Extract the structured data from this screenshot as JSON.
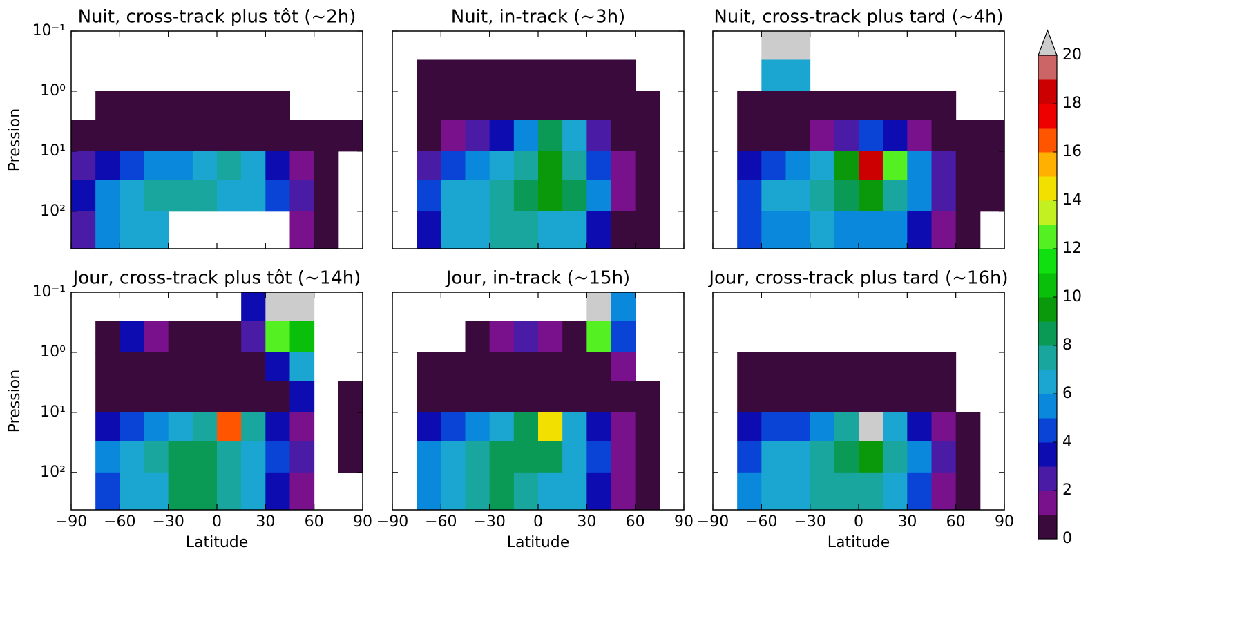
{
  "chart_data": [
    {
      "type": "contour",
      "title": "Nuit, cross-track plus tôt (~2h)",
      "ylabel": "Pression",
      "xlim": [
        -90,
        90
      ],
      "xticks": [
        -90,
        -60,
        -30,
        0,
        30,
        60,
        90
      ],
      "ylim": [
        420,
        0.1
      ],
      "yticks": [
        {
          "value": 0.1,
          "label": "10⁻¹"
        },
        {
          "value": 1,
          "label": "10⁰"
        },
        {
          "value": 10,
          "label": "10¹"
        },
        {
          "value": 100,
          "label": "10²"
        }
      ],
      "xbins": [
        -90,
        -75,
        -60,
        -45,
        -30,
        -15,
        0,
        15,
        30,
        45,
        60,
        75,
        90
      ],
      "ybins": [
        0.1,
        0.3,
        1,
        3,
        10,
        30,
        100,
        420
      ],
      "z": [
        [
          null,
          null,
          null,
          null,
          null,
          null,
          null,
          null,
          null,
          null,
          null,
          null
        ],
        [
          null,
          null,
          null,
          null,
          null,
          null,
          null,
          null,
          null,
          null,
          null,
          null
        ],
        [
          null,
          0,
          0,
          0,
          0,
          0,
          0,
          0,
          0,
          null,
          null,
          null
        ],
        [
          0,
          0,
          0,
          0,
          0,
          0,
          0,
          0,
          0,
          0,
          0,
          0
        ],
        [
          2,
          3,
          4,
          5,
          5,
          6,
          7,
          6,
          3,
          1,
          0,
          null
        ],
        [
          3,
          5,
          6,
          7,
          7,
          7,
          6,
          6,
          4,
          2,
          0,
          null
        ],
        [
          2,
          5,
          6,
          6,
          null,
          null,
          null,
          null,
          null,
          1,
          0,
          null
        ]
      ]
    },
    {
      "type": "contour",
      "title": "Nuit, in-track (~3h)",
      "xlim": [
        -90,
        90
      ],
      "xticks": [
        -90,
        -60,
        -30,
        0,
        30,
        60,
        90
      ],
      "ylim": [
        420,
        0.1
      ],
      "yticks": [
        0.1,
        1,
        10,
        100
      ],
      "xbins": [
        -90,
        -75,
        -60,
        -45,
        -30,
        -15,
        0,
        15,
        30,
        45,
        60,
        75,
        90
      ],
      "ybins": [
        0.1,
        0.3,
        1,
        3,
        10,
        30,
        100,
        420
      ],
      "z": [
        [
          null,
          null,
          null,
          null,
          null,
          null,
          null,
          null,
          null,
          null,
          null,
          null
        ],
        [
          null,
          0,
          0,
          0,
          0,
          0,
          0,
          0,
          0,
          0,
          null,
          null
        ],
        [
          null,
          0,
          0,
          0,
          0,
          0,
          0,
          0,
          0,
          0,
          0,
          null
        ],
        [
          null,
          0,
          1,
          2,
          3,
          5,
          8,
          6,
          2,
          0,
          0,
          null
        ],
        [
          null,
          2,
          4,
          5,
          6,
          7,
          9,
          7,
          4,
          1,
          0,
          null
        ],
        [
          null,
          4,
          6,
          6,
          7,
          8,
          9,
          8,
          5,
          1,
          0,
          null
        ],
        [
          null,
          3,
          6,
          6,
          7,
          7,
          6,
          6,
          3,
          0,
          0,
          null
        ]
      ]
    },
    {
      "type": "contour",
      "title": "Nuit, cross-track plus tard (~4h)",
      "xlim": [
        -90,
        90
      ],
      "xticks": [
        -90,
        -60,
        -30,
        0,
        30,
        60,
        90
      ],
      "ylim": [
        420,
        0.1
      ],
      "yticks": [
        0.1,
        1,
        10,
        100
      ],
      "xbins": [
        -90,
        -75,
        -60,
        -45,
        -30,
        -15,
        0,
        15,
        30,
        45,
        60,
        75,
        90
      ],
      "ybins": [
        0.1,
        0.3,
        1,
        3,
        10,
        30,
        100,
        420
      ],
      "z": [
        [
          null,
          null,
          20,
          20,
          null,
          null,
          null,
          null,
          null,
          null,
          null,
          null
        ],
        [
          null,
          null,
          6,
          6,
          null,
          null,
          null,
          null,
          null,
          null,
          null,
          null
        ],
        [
          null,
          0,
          0,
          0,
          0,
          0,
          0,
          0,
          0,
          0,
          null,
          null
        ],
        [
          null,
          0,
          0,
          0,
          1,
          2,
          4,
          3,
          1,
          0,
          0,
          0
        ],
        [
          null,
          3,
          4,
          5,
          6,
          9,
          18,
          12,
          5,
          2,
          0,
          0
        ],
        [
          null,
          4,
          6,
          6,
          7,
          8,
          9,
          7,
          5,
          2,
          0,
          0
        ],
        [
          null,
          4,
          5,
          5,
          6,
          5,
          5,
          5,
          3,
          1,
          0,
          null
        ]
      ]
    },
    {
      "type": "contour",
      "title": "Jour, cross-track plus tôt (~14h)",
      "xlabel": "Latitude",
      "ylabel": "Pression",
      "xlim": [
        -90,
        90
      ],
      "xticks": [
        {
          "value": -90,
          "label": "−90"
        },
        {
          "value": -60,
          "label": "−60"
        },
        {
          "value": -30,
          "label": "−30"
        },
        0,
        30,
        60,
        90
      ],
      "ylim": [
        420,
        0.1
      ],
      "yticks": [
        {
          "value": 0.1,
          "label": "10⁻¹"
        },
        {
          "value": 1,
          "label": "10⁰"
        },
        {
          "value": 10,
          "label": "10¹"
        },
        {
          "value": 100,
          "label": "10²"
        }
      ],
      "xbins": [
        -90,
        -75,
        -60,
        -45,
        -30,
        -15,
        0,
        15,
        30,
        45,
        60,
        75,
        90
      ],
      "ybins": [
        0.1,
        0.3,
        1,
        3,
        10,
        30,
        100,
        420
      ],
      "z": [
        [
          null,
          null,
          null,
          null,
          null,
          null,
          null,
          3,
          20,
          20,
          null,
          null
        ],
        [
          null,
          0,
          3,
          1,
          0,
          0,
          0,
          2,
          12,
          10,
          null,
          null
        ],
        [
          null,
          0,
          0,
          0,
          0,
          0,
          0,
          0,
          3,
          6,
          null,
          null
        ],
        [
          null,
          0,
          0,
          0,
          0,
          0,
          0,
          0,
          0,
          3,
          null,
          0
        ],
        [
          null,
          3,
          4,
          5,
          6,
          7,
          16,
          7,
          3,
          1,
          null,
          0
        ],
        [
          null,
          5,
          6,
          7,
          8,
          8,
          7,
          6,
          4,
          2,
          null,
          0
        ],
        [
          null,
          4,
          6,
          6,
          8,
          8,
          7,
          6,
          3,
          1,
          null,
          null
        ]
      ]
    },
    {
      "type": "contour",
      "title": "Jour, in-track (~15h)",
      "xlabel": "Latitude",
      "xlim": [
        -90,
        90
      ],
      "xticks": [
        {
          "value": -90,
          "label": "−90"
        },
        {
          "value": -60,
          "label": "−60"
        },
        {
          "value": -30,
          "label": "−30"
        },
        0,
        30,
        60,
        90
      ],
      "ylim": [
        420,
        0.1
      ],
      "yticks": [
        0.1,
        1,
        10,
        100
      ],
      "xbins": [
        -90,
        -75,
        -60,
        -45,
        -30,
        -15,
        0,
        15,
        30,
        45,
        60,
        75,
        90
      ],
      "ybins": [
        0.1,
        0.3,
        1,
        3,
        10,
        30,
        100,
        420
      ],
      "z": [
        [
          null,
          null,
          null,
          null,
          null,
          null,
          null,
          null,
          20,
          5,
          null,
          null
        ],
        [
          null,
          null,
          null,
          0,
          1,
          2,
          1,
          0,
          12,
          4,
          null,
          null
        ],
        [
          null,
          0,
          0,
          0,
          0,
          0,
          0,
          0,
          0,
          1,
          null,
          null
        ],
        [
          null,
          0,
          0,
          0,
          0,
          0,
          0,
          0,
          0,
          0,
          0,
          null
        ],
        [
          null,
          3,
          4,
          5,
          6,
          8,
          14,
          6,
          3,
          1,
          0,
          null
        ],
        [
          null,
          5,
          6,
          7,
          8,
          8,
          8,
          6,
          4,
          1,
          0,
          null
        ],
        [
          null,
          5,
          6,
          7,
          8,
          7,
          6,
          6,
          3,
          1,
          0,
          null
        ]
      ]
    },
    {
      "type": "contour",
      "title": "Jour, cross-track plus tard (~16h)",
      "xlabel": "Latitude",
      "xlim": [
        -90,
        90
      ],
      "xticks": [
        {
          "value": -90,
          "label": "−90"
        },
        {
          "value": -60,
          "label": "−60"
        },
        {
          "value": -30,
          "label": "−30"
        },
        0,
        30,
        60,
        90
      ],
      "ylim": [
        420,
        0.1
      ],
      "yticks": [
        0.1,
        1,
        10,
        100
      ],
      "xbins": [
        -90,
        -75,
        -60,
        -45,
        -30,
        -15,
        0,
        15,
        30,
        45,
        60,
        75,
        90
      ],
      "ybins": [
        0.1,
        0.3,
        1,
        3,
        10,
        30,
        100,
        420
      ],
      "z": [
        [
          null,
          null,
          null,
          null,
          null,
          null,
          null,
          null,
          null,
          null,
          null,
          null
        ],
        [
          null,
          null,
          null,
          null,
          null,
          null,
          null,
          null,
          null,
          null,
          null,
          null
        ],
        [
          null,
          0,
          0,
          0,
          0,
          0,
          0,
          0,
          0,
          0,
          null,
          null
        ],
        [
          null,
          0,
          0,
          0,
          0,
          0,
          0,
          0,
          0,
          0,
          null,
          null
        ],
        [
          null,
          3,
          4,
          4,
          5,
          7,
          20,
          6,
          3,
          1,
          0,
          null
        ],
        [
          null,
          4,
          6,
          6,
          7,
          8,
          9,
          7,
          5,
          2,
          0,
          null
        ],
        [
          null,
          5,
          6,
          6,
          7,
          7,
          7,
          6,
          4,
          1,
          0,
          null
        ]
      ]
    },
    {
      "type": "colorbar",
      "levels": [
        0,
        1,
        2,
        3,
        4,
        5,
        6,
        7,
        8,
        9,
        10,
        11,
        12,
        13,
        14,
        15,
        16,
        17,
        18,
        19,
        20
      ],
      "colors": [
        "#3b0a3d",
        "#7a118c",
        "#4a1ca6",
        "#0c0cb0",
        "#0a44d6",
        "#0a88dc",
        "#1aa6d0",
        "#18a69e",
        "#0a9a55",
        "#0a990a",
        "#0abf0a",
        "#10e010",
        "#55f022",
        "#c2f020",
        "#f2e000",
        "#ffb000",
        "#ff5500",
        "#ee0000",
        "#cc0000",
        "#cc6666",
        "#cccccc"
      ],
      "ticks": [
        0,
        2,
        4,
        6,
        8,
        10,
        12,
        14,
        16,
        18,
        20
      ]
    }
  ]
}
